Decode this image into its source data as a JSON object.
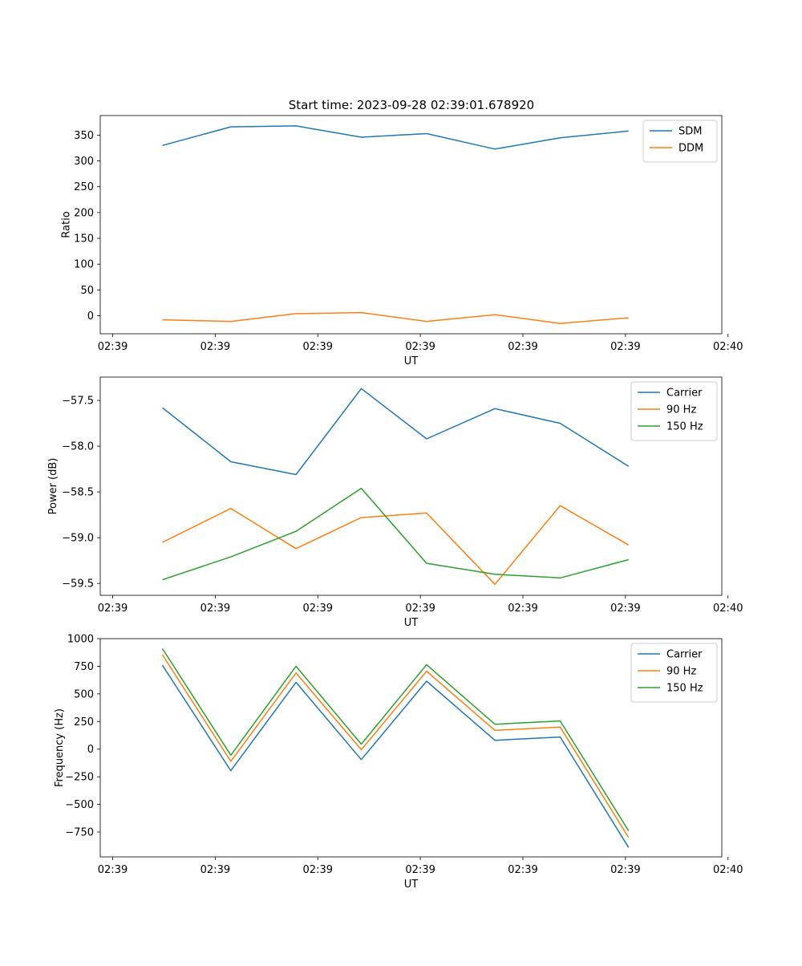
{
  "figure": {
    "title": "Start time: 2023-09-28 02:39:01.678920"
  },
  "colors": {
    "blue": "#1f77b4",
    "orange": "#ff7f0e",
    "green": "#2ca02c"
  },
  "chart_data": [
    {
      "type": "line",
      "title": "Start time: 2023-09-28 02:39:01.678920",
      "xlabel": "UT",
      "ylabel": "Ratio",
      "xlim": [
        -0.5,
        9.5
      ],
      "ylim": [
        -35,
        388
      ],
      "x_ticks": [
        -0.3,
        1.35,
        3.0,
        4.65,
        6.3,
        7.95,
        9.6
      ],
      "x_tick_labels": [
        "02:39",
        "02:39",
        "02:39",
        "02:39",
        "02:39",
        "02:39",
        "02:40"
      ],
      "y_ticks": [
        0,
        50,
        100,
        150,
        200,
        250,
        300,
        350
      ],
      "y_tick_labels": [
        "0",
        "50",
        "100",
        "150",
        "200",
        "250",
        "300",
        "350"
      ],
      "legend_position": "top-right",
      "x": [
        0.5,
        1.6,
        2.65,
        3.7,
        4.75,
        5.85,
        6.9,
        8.0
      ],
      "series": [
        {
          "name": "SDM",
          "color": "#1f77b4",
          "values": [
            330,
            366,
            368,
            346,
            353,
            323,
            345,
            358
          ]
        },
        {
          "name": "DDM",
          "color": "#ff7f0e",
          "values": [
            -8,
            -11,
            4,
            6,
            -11,
            2,
            -15,
            -4
          ]
        }
      ]
    },
    {
      "type": "line",
      "title": "",
      "xlabel": "UT",
      "ylabel": "Power (dB)",
      "xlim": [
        -0.5,
        9.5
      ],
      "ylim": [
        -59.63,
        -57.245
      ],
      "x_ticks": [
        -0.3,
        1.35,
        3.0,
        4.65,
        6.3,
        7.95,
        9.6
      ],
      "x_tick_labels": [
        "02:39",
        "02:39",
        "02:39",
        "02:39",
        "02:39",
        "02:39",
        "02:40"
      ],
      "y_ticks": [
        -59.5,
        -59.0,
        -58.5,
        -58.0,
        -57.5
      ],
      "y_tick_labels": [
        "−59.5",
        "−59.0",
        "−58.5",
        "−58.0",
        "−57.5"
      ],
      "legend_position": "top-right",
      "x": [
        0.5,
        1.6,
        2.65,
        3.7,
        4.75,
        5.85,
        6.9,
        8.0
      ],
      "series": [
        {
          "name": "Carrier",
          "color": "#1f77b4",
          "values": [
            -57.58,
            -58.17,
            -58.31,
            -57.37,
            -57.92,
            -57.59,
            -57.75,
            -58.22
          ]
        },
        {
          "name": "90 Hz",
          "color": "#ff7f0e",
          "values": [
            -59.05,
            -58.68,
            -59.12,
            -58.78,
            -58.73,
            -59.51,
            -58.65,
            -59.08
          ]
        },
        {
          "name": "150 Hz",
          "color": "#2ca02c",
          "values": [
            -59.46,
            -59.21,
            -58.93,
            -58.46,
            -59.28,
            -59.4,
            -59.44,
            -59.24
          ]
        }
      ]
    },
    {
      "type": "line",
      "title": "",
      "xlabel": "UT",
      "ylabel": "Frequency (Hz)",
      "xlim": [
        -0.5,
        9.5
      ],
      "ylim": [
        -975,
        1000
      ],
      "x_ticks": [
        -0.3,
        1.35,
        3.0,
        4.65,
        6.3,
        7.95,
        9.6
      ],
      "x_tick_labels": [
        "02:39",
        "02:39",
        "02:39",
        "02:39",
        "02:39",
        "02:39",
        "02:40"
      ],
      "y_ticks": [
        -750,
        -500,
        -250,
        0,
        250,
        500,
        750,
        1000
      ],
      "y_tick_labels": [
        "−750",
        "−500",
        "−250",
        "0",
        "250",
        "500",
        "750",
        "1000"
      ],
      "legend_position": "top-right",
      "x": [
        0.5,
        1.6,
        2.65,
        3.7,
        4.75,
        5.85,
        6.9,
        8.0
      ],
      "series": [
        {
          "name": "Carrier",
          "color": "#1f77b4",
          "values": [
            760,
            -195,
            605,
            -95,
            615,
            80,
            110,
            -890
          ]
        },
        {
          "name": "90 Hz",
          "color": "#ff7f0e",
          "values": [
            855,
            -110,
            690,
            -5,
            705,
            170,
            200,
            -800
          ]
        },
        {
          "name": "150 Hz",
          "color": "#2ca02c",
          "values": [
            910,
            -55,
            750,
            45,
            765,
            225,
            255,
            -740
          ]
        }
      ]
    }
  ]
}
